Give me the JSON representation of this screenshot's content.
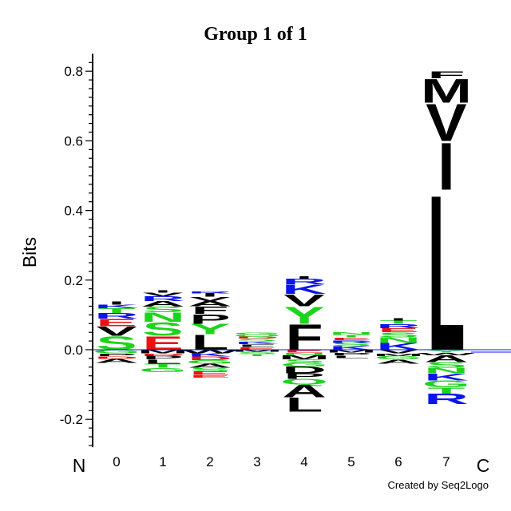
{
  "chart_data": {
    "type": "sequence-logo",
    "title": "Group 1 of 1",
    "ylabel": "Bits",
    "ylim": [
      -0.28,
      0.85
    ],
    "yticks": [
      -0.2,
      0.0,
      0.2,
      0.4,
      0.6,
      0.8
    ],
    "ytick_labels": [
      "-0.2",
      "0.0",
      "0.2",
      "0.4",
      "0.6",
      "0.8"
    ],
    "positions": [
      "0",
      "1",
      "2",
      "3",
      "4",
      "5",
      "6",
      "7"
    ],
    "n_terminus_label": "N",
    "c_terminus_label": "C",
    "credit": "Created by Seq2Logo",
    "colors": {
      "black": "#000000",
      "green": "#1ed31e",
      "blue": "#0a14ee",
      "red": "#ee1111"
    },
    "stacks": [
      {
        "position": "0",
        "positive": [
          {
            "letter": "S",
            "height": 0.04,
            "color": "green"
          },
          {
            "letter": "V",
            "height": 0.028,
            "color": "black"
          },
          {
            "letter": "E",
            "height": 0.022,
            "color": "red"
          },
          {
            "letter": "R",
            "height": 0.016,
            "color": "blue"
          },
          {
            "letter": "T",
            "height": 0.013,
            "color": "green"
          },
          {
            "letter": "K",
            "height": 0.011,
            "color": "blue"
          },
          {
            "letter": "I",
            "height": 0.009,
            "color": "black"
          }
        ],
        "negative": [
          {
            "letter": "G",
            "height": 0.01,
            "color": "green"
          },
          {
            "letter": "P",
            "height": 0.008,
            "color": "black"
          },
          {
            "letter": "D",
            "height": 0.008,
            "color": "red"
          },
          {
            "letter": "A",
            "height": 0.012,
            "color": "black"
          }
        ]
      },
      {
        "position": "1",
        "positive": [
          {
            "letter": "E",
            "height": 0.04,
            "color": "red"
          },
          {
            "letter": "S",
            "height": 0.04,
            "color": "green"
          },
          {
            "letter": "N",
            "height": 0.028,
            "color": "green"
          },
          {
            "letter": "S",
            "height": 0.016,
            "color": "green"
          },
          {
            "letter": "A",
            "height": 0.016,
            "color": "black"
          },
          {
            "letter": "R",
            "height": 0.014,
            "color": "blue"
          },
          {
            "letter": "V",
            "height": 0.01,
            "color": "black"
          },
          {
            "letter": "I",
            "height": 0.008,
            "color": "black"
          }
        ],
        "negative": [
          {
            "letter": "M",
            "height": 0.01,
            "color": "black"
          },
          {
            "letter": "D",
            "height": 0.008,
            "color": "red"
          },
          {
            "letter": "P",
            "height": 0.01,
            "color": "black"
          },
          {
            "letter": "L",
            "height": 0.012,
            "color": "black"
          },
          {
            "letter": "T",
            "height": 0.012,
            "color": "green"
          },
          {
            "letter": "G",
            "height": 0.012,
            "color": "green"
          }
        ]
      },
      {
        "position": "2",
        "positive": [
          {
            "letter": "L",
            "height": 0.045,
            "color": "black"
          },
          {
            "letter": "Y",
            "height": 0.03,
            "color": "green"
          },
          {
            "letter": "P",
            "height": 0.028,
            "color": "black"
          },
          {
            "letter": "F",
            "height": 0.022,
            "color": "black"
          },
          {
            "letter": "A",
            "height": 0.015,
            "color": "black"
          },
          {
            "letter": "V",
            "height": 0.012,
            "color": "black"
          },
          {
            "letter": "I",
            "height": 0.01,
            "color": "black"
          },
          {
            "letter": "R",
            "height": 0.006,
            "color": "blue"
          }
        ],
        "negative": [
          {
            "letter": "W",
            "height": 0.01,
            "color": "black"
          },
          {
            "letter": "K",
            "height": 0.01,
            "color": "blue"
          },
          {
            "letter": "D",
            "height": 0.01,
            "color": "red"
          },
          {
            "letter": "G",
            "height": 0.01,
            "color": "green"
          },
          {
            "letter": "A",
            "height": 0.012,
            "color": "black"
          },
          {
            "letter": "S",
            "height": 0.01,
            "color": "green"
          },
          {
            "letter": "E",
            "height": 0.01,
            "color": "red"
          },
          {
            "letter": "E",
            "height": 0.008,
            "color": "red"
          }
        ]
      },
      {
        "position": "3",
        "positive": [
          {
            "letter": "E",
            "height": 0.008,
            "color": "red"
          },
          {
            "letter": "F",
            "height": 0.008,
            "color": "black"
          },
          {
            "letter": "K",
            "height": 0.008,
            "color": "blue"
          },
          {
            "letter": "S",
            "height": 0.008,
            "color": "green"
          },
          {
            "letter": "D",
            "height": 0.006,
            "color": "red"
          },
          {
            "letter": "Q",
            "height": 0.006,
            "color": "green"
          },
          {
            "letter": "G",
            "height": 0.006,
            "color": "green"
          }
        ],
        "negative": [
          {
            "letter": "M",
            "height": 0.006,
            "color": "black"
          },
          {
            "letter": "S",
            "height": 0.006,
            "color": "green"
          },
          {
            "letter": "T",
            "height": 0.006,
            "color": "green"
          }
        ]
      },
      {
        "position": "4",
        "positive": [
          {
            "letter": "F",
            "height": 0.075,
            "color": "black"
          },
          {
            "letter": "Y",
            "height": 0.05,
            "color": "green"
          },
          {
            "letter": "V",
            "height": 0.035,
            "color": "black"
          },
          {
            "letter": "K",
            "height": 0.028,
            "color": "blue"
          },
          {
            "letter": "R",
            "height": 0.016,
            "color": "blue"
          },
          {
            "letter": "I",
            "height": 0.008,
            "color": "black"
          }
        ],
        "negative": [
          {
            "letter": "E",
            "height": 0.008,
            "color": "red"
          },
          {
            "letter": "N",
            "height": 0.008,
            "color": "green"
          },
          {
            "letter": "M",
            "height": 0.012,
            "color": "black"
          },
          {
            "letter": "S",
            "height": 0.01,
            "color": "green"
          },
          {
            "letter": "G",
            "height": 0.01,
            "color": "green"
          },
          {
            "letter": "D",
            "height": 0.02,
            "color": "black"
          },
          {
            "letter": "P",
            "height": 0.016,
            "color": "black"
          },
          {
            "letter": "Q",
            "height": 0.016,
            "color": "green"
          },
          {
            "letter": "A",
            "height": 0.036,
            "color": "black"
          },
          {
            "letter": "L",
            "height": 0.042,
            "color": "black"
          }
        ]
      },
      {
        "position": "5",
        "positive": [
          {
            "letter": "K",
            "height": 0.01,
            "color": "blue"
          },
          {
            "letter": "S",
            "height": 0.01,
            "color": "green"
          },
          {
            "letter": "R",
            "height": 0.008,
            "color": "blue"
          },
          {
            "letter": "E",
            "height": 0.008,
            "color": "red"
          },
          {
            "letter": "T",
            "height": 0.008,
            "color": "green"
          },
          {
            "letter": "N",
            "height": 0.008,
            "color": "green"
          }
        ],
        "negative": [
          {
            "letter": "M",
            "height": 0.008,
            "color": "black"
          },
          {
            "letter": "P",
            "height": 0.008,
            "color": "black"
          },
          {
            "letter": "L",
            "height": 0.008,
            "color": "black"
          }
        ]
      },
      {
        "position": "6",
        "positive": [
          {
            "letter": "K",
            "height": 0.02,
            "color": "blue"
          },
          {
            "letter": "N",
            "height": 0.016,
            "color": "green"
          },
          {
            "letter": "S",
            "height": 0.014,
            "color": "green"
          },
          {
            "letter": "E",
            "height": 0.012,
            "color": "red"
          },
          {
            "letter": "R",
            "height": 0.012,
            "color": "blue"
          },
          {
            "letter": "T",
            "height": 0.01,
            "color": "green"
          },
          {
            "letter": "I",
            "height": 0.008,
            "color": "black"
          }
        ],
        "negative": [
          {
            "letter": "V",
            "height": 0.01,
            "color": "black"
          },
          {
            "letter": "M",
            "height": 0.008,
            "color": "black"
          },
          {
            "letter": "G",
            "height": 0.01,
            "color": "green"
          },
          {
            "letter": "A",
            "height": 0.012,
            "color": "black"
          }
        ]
      },
      {
        "position": "7",
        "positive": [
          {
            "letter": "L",
            "height": 0.46,
            "color": "black"
          },
          {
            "letter": "I",
            "height": 0.14,
            "color": "black"
          },
          {
            "letter": "V",
            "height": 0.11,
            "color": "black"
          },
          {
            "letter": "M",
            "height": 0.07,
            "color": "black"
          },
          {
            "letter": "F",
            "height": 0.02,
            "color": "black"
          }
        ],
        "negative": [
          {
            "letter": "Y",
            "height": 0.008,
            "color": "green"
          },
          {
            "letter": "W",
            "height": 0.008,
            "color": "black"
          },
          {
            "letter": "A",
            "height": 0.02,
            "color": "black"
          },
          {
            "letter": "S",
            "height": 0.016,
            "color": "green"
          },
          {
            "letter": "N",
            "height": 0.016,
            "color": "green"
          },
          {
            "letter": "K",
            "height": 0.02,
            "color": "blue"
          },
          {
            "letter": "G",
            "height": 0.02,
            "color": "green"
          },
          {
            "letter": "T",
            "height": 0.018,
            "color": "green"
          },
          {
            "letter": "R",
            "height": 0.03,
            "color": "blue"
          }
        ]
      }
    ]
  }
}
